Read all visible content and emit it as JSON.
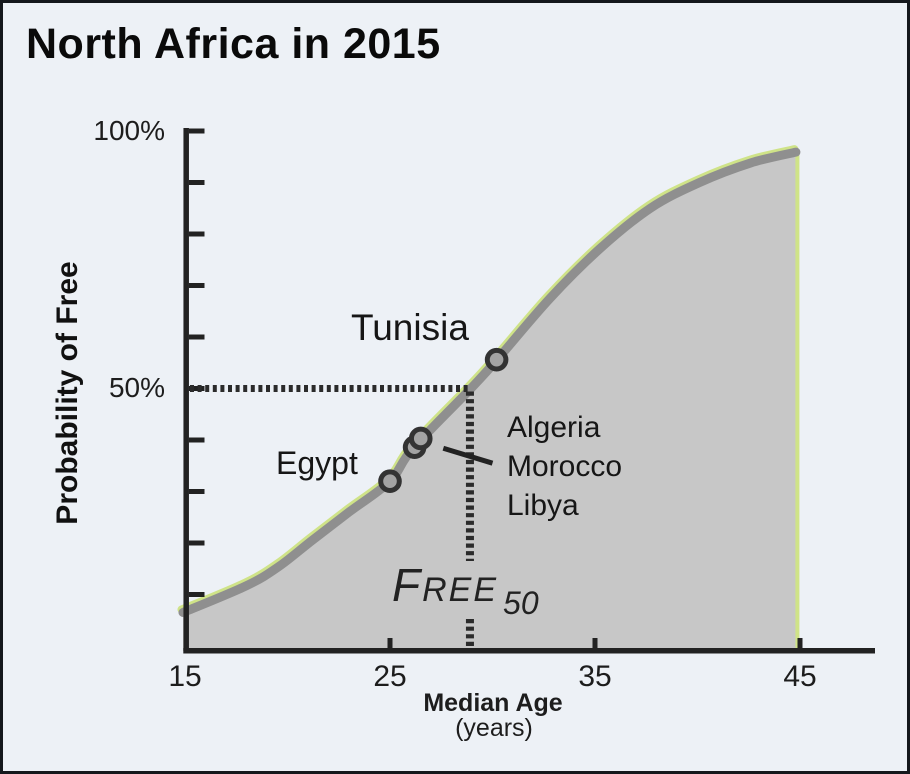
{
  "title": "North Africa in 2015",
  "axis_labels": {
    "y100": "100%",
    "y50": "50%",
    "x_ticks": [
      "15",
      "25",
      "35",
      "45"
    ]
  },
  "annotations": {
    "tunisia": "Tunisia",
    "egypt": "Egypt",
    "cluster_lines": [
      "Algeria",
      "Morocco",
      "Libya"
    ],
    "free50_main": "FREE",
    "free50_sub": "50"
  },
  "colors": {
    "background": "#edf1f6",
    "frame": "#15181c",
    "ink": "#1d1d1d",
    "axis": "#222222",
    "curve": "#8f8f8f",
    "curve_fill": "#c7c7c7",
    "accent_green": "#cfe388",
    "dotted": "#2b2b2b",
    "point_fill": "#a3a3a3",
    "point_stroke": "#333333"
  },
  "chart_data": {
    "type": "line",
    "title": "North Africa in 2015",
    "xlabel": "Median Age",
    "xlabel_unit": "(years)",
    "ylabel": "Probability of Free",
    "xlim": [
      15,
      48.6
    ],
    "ylim": [
      0,
      100
    ],
    "x_ticks": [
      15,
      25,
      35,
      45
    ],
    "y_tick_interval": 10,
    "y_labeled_ticks": [
      50,
      100
    ],
    "grid": false,
    "curve": [
      [
        14.9,
        6.5
      ],
      [
        18.0,
        11.7
      ],
      [
        19.6,
        15.5
      ],
      [
        21.2,
        20.5
      ],
      [
        23.0,
        26.0
      ],
      [
        25.0,
        32.0
      ],
      [
        26.1,
        38.3
      ],
      [
        28.9,
        49.8
      ],
      [
        30.2,
        55.5
      ],
      [
        32.8,
        67.5
      ],
      [
        35.2,
        77.0
      ],
      [
        37.7,
        85.0
      ],
      [
        40.1,
        90.0
      ],
      [
        42.6,
        93.8
      ],
      [
        44.8,
        95.9
      ]
    ],
    "points": [
      {
        "label": "Egypt",
        "x": 25.0,
        "y": 32.0
      },
      {
        "label": "Algeria/Morocco/Libya",
        "x": 26.2,
        "y": 38.6
      },
      {
        "label": "Algeria/Morocco/Libya",
        "x": 26.5,
        "y": 40.3
      },
      {
        "label": "Tunisia",
        "x": 30.2,
        "y": 55.6
      }
    ],
    "free50": {
      "x": 28.9,
      "y": 50
    },
    "fifty_pct_line_y": 50,
    "leader_line": {
      "x1": 27.6,
      "y1": 38.4,
      "x2": 30.0,
      "y2": 35.5
    }
  }
}
